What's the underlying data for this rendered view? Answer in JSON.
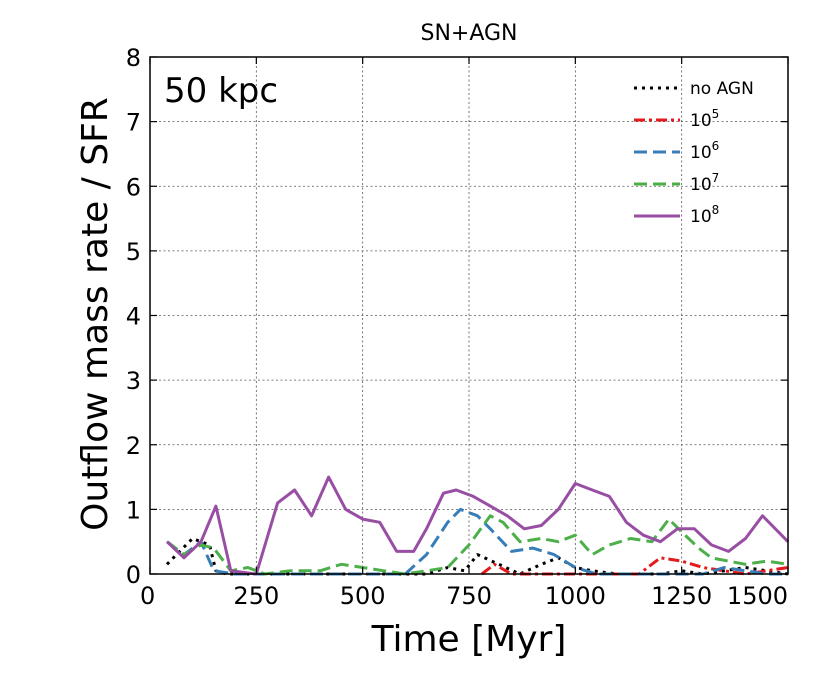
{
  "chart_data": {
    "type": "line",
    "title": "SN+AGN",
    "panel_label": "50 kpc",
    "xlabel": "Time [Myr]",
    "ylabel": "Outflow mass rate / SFR",
    "xlim": [
      0,
      1500
    ],
    "ylim": [
      0,
      8
    ],
    "xticks": [
      0,
      250,
      500,
      750,
      1000,
      1250,
      1500
    ],
    "yticks": [
      0,
      1,
      2,
      3,
      4,
      5,
      6,
      7,
      8
    ],
    "grid": true,
    "legend_position": "top-right",
    "series": [
      {
        "name": "no AGN",
        "label_base": "no AGN",
        "label_sup": "",
        "color": "#000000",
        "style": "dotted",
        "x": [
          40,
          100,
          140,
          155,
          180,
          300,
          650,
          700,
          740,
          770,
          820,
          870,
          920,
          960,
          1000,
          1040,
          1100,
          1150,
          1200,
          1250,
          1300,
          1350,
          1400,
          1450,
          1500
        ],
        "y": [
          0.15,
          0.55,
          0.45,
          0.05,
          0.0,
          0.0,
          0.0,
          0.1,
          0.05,
          0.3,
          0.15,
          0.0,
          0.15,
          0.25,
          0.1,
          0.05,
          0.0,
          0.0,
          0.0,
          0.05,
          0.0,
          0.05,
          0.1,
          0.05,
          0.0
        ]
      },
      {
        "name": "10^5",
        "label_base": "10",
        "label_sup": "5",
        "color": "#e41a1c",
        "style": "dashdot",
        "x": [
          780,
          810,
          850,
          900,
          950,
          1000,
          1050,
          1100,
          1150,
          1200,
          1250,
          1300,
          1350,
          1400,
          1450,
          1500
        ],
        "y": [
          0.0,
          0.15,
          0.0,
          0.0,
          0.0,
          0.0,
          0.0,
          0.0,
          0.0,
          0.25,
          0.2,
          0.1,
          0.05,
          0.0,
          0.05,
          0.1
        ]
      },
      {
        "name": "10^6",
        "label_base": "10",
        "label_sup": "6",
        "color": "#377eb8",
        "style": "dashed",
        "x": [
          40,
          80,
          120,
          150,
          200,
          300,
          500,
          600,
          650,
          700,
          730,
          770,
          800,
          850,
          900,
          950,
          1000,
          1050,
          1100,
          1200,
          1300,
          1350,
          1400,
          1450,
          1500
        ],
        "y": [
          0.5,
          0.3,
          0.5,
          0.05,
          0.0,
          0.0,
          0.0,
          0.0,
          0.3,
          0.8,
          1.0,
          0.9,
          0.7,
          0.35,
          0.4,
          0.3,
          0.1,
          0.0,
          0.0,
          0.0,
          0.0,
          0.1,
          0.05,
          0.0,
          0.0
        ]
      },
      {
        "name": "10^7",
        "label_base": "10",
        "label_sup": "7",
        "color": "#4daf4a",
        "style": "dashed",
        "x": [
          40,
          80,
          120,
          150,
          190,
          230,
          270,
          330,
          400,
          450,
          500,
          550,
          600,
          650,
          700,
          750,
          800,
          830,
          870,
          920,
          960,
          1000,
          1040,
          1080,
          1130,
          1180,
          1220,
          1250,
          1290,
          1320,
          1360,
          1400,
          1450,
          1500
        ],
        "y": [
          0.5,
          0.3,
          0.45,
          0.4,
          0.05,
          0.1,
          0.0,
          0.05,
          0.05,
          0.15,
          0.1,
          0.05,
          0.0,
          0.05,
          0.1,
          0.45,
          0.9,
          0.8,
          0.5,
          0.55,
          0.5,
          0.6,
          0.3,
          0.45,
          0.55,
          0.5,
          0.85,
          0.65,
          0.4,
          0.25,
          0.2,
          0.15,
          0.2,
          0.15
        ]
      },
      {
        "name": "10^8",
        "label_base": "10",
        "label_sup": "8",
        "color": "#984ea3",
        "style": "solid",
        "x": [
          40,
          80,
          120,
          155,
          190,
          250,
          300,
          340,
          380,
          420,
          460,
          500,
          540,
          580,
          620,
          650,
          690,
          720,
          760,
          800,
          840,
          880,
          920,
          960,
          1000,
          1040,
          1080,
          1120,
          1160,
          1200,
          1240,
          1280,
          1320,
          1360,
          1400,
          1440,
          1500
        ],
        "y": [
          0.5,
          0.25,
          0.5,
          1.05,
          0.05,
          0.0,
          1.1,
          1.3,
          0.9,
          1.5,
          1.0,
          0.85,
          0.8,
          0.35,
          0.35,
          0.7,
          1.25,
          1.3,
          1.2,
          1.05,
          0.9,
          0.7,
          0.75,
          1.0,
          1.4,
          1.3,
          1.2,
          0.8,
          0.6,
          0.5,
          0.7,
          0.7,
          0.45,
          0.35,
          0.55,
          0.9,
          0.5
        ]
      }
    ]
  }
}
